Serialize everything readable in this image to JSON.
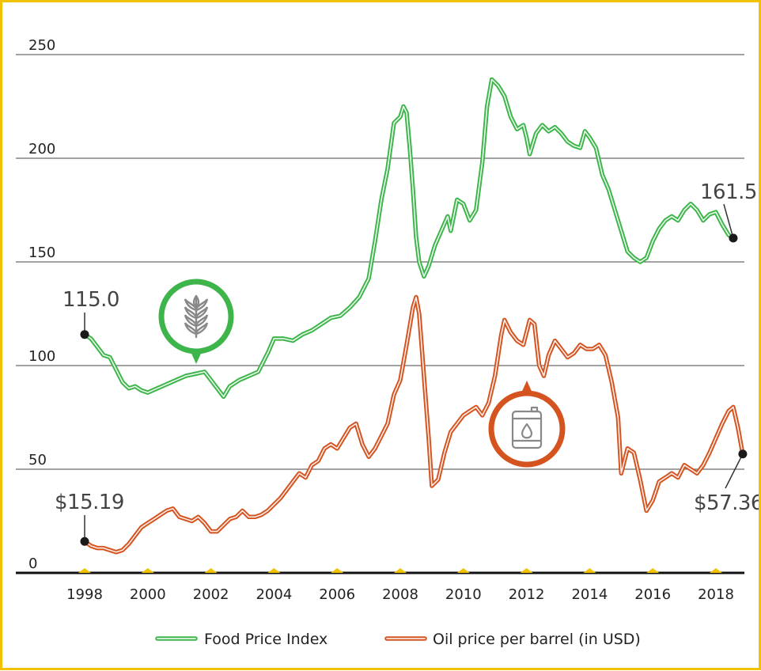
{
  "chart_data": {
    "type": "line",
    "title": "",
    "xlabel": "",
    "ylabel": "",
    "xlim": [
      1997.7,
      2018.9
    ],
    "ylim": [
      0,
      250
    ],
    "yticks": [
      0,
      50,
      100,
      150,
      200,
      250
    ],
    "xticks": [
      1998,
      2000,
      2002,
      2004,
      2006,
      2008,
      2010,
      2012,
      2014,
      2016,
      2018
    ],
    "grid": "horizontal",
    "legend_position": "bottom",
    "colors": {
      "food": "#3db54a",
      "oil": "#d4531f",
      "axis": "#111111",
      "marker": "#f2c200",
      "frame": "#f2c200"
    },
    "icons": [
      "wheat-icon",
      "oil-barrel-icon"
    ],
    "series": [
      {
        "key": "food",
        "name": "Food Price Index",
        "points": [
          [
            1998.0,
            115.0
          ],
          [
            1998.2,
            113
          ],
          [
            1998.4,
            109
          ],
          [
            1998.6,
            105
          ],
          [
            1998.8,
            104
          ],
          [
            1999.0,
            98
          ],
          [
            1999.2,
            92
          ],
          [
            1999.4,
            89
          ],
          [
            1999.6,
            90
          ],
          [
            1999.8,
            88
          ],
          [
            2000.0,
            87
          ],
          [
            2000.3,
            89
          ],
          [
            2000.6,
            91
          ],
          [
            2000.9,
            93
          ],
          [
            2001.2,
            95
          ],
          [
            2001.5,
            96
          ],
          [
            2001.8,
            97
          ],
          [
            2002.0,
            93
          ],
          [
            2002.2,
            89
          ],
          [
            2002.4,
            85
          ],
          [
            2002.6,
            90
          ],
          [
            2002.9,
            93
          ],
          [
            2003.2,
            95
          ],
          [
            2003.5,
            97
          ],
          [
            2003.8,
            106
          ],
          [
            2004.0,
            113
          ],
          [
            2004.3,
            113
          ],
          [
            2004.6,
            112
          ],
          [
            2004.9,
            115
          ],
          [
            2005.2,
            117
          ],
          [
            2005.5,
            120
          ],
          [
            2005.8,
            123
          ],
          [
            2006.1,
            124
          ],
          [
            2006.4,
            128
          ],
          [
            2006.7,
            133
          ],
          [
            2007.0,
            142
          ],
          [
            2007.2,
            160
          ],
          [
            2007.4,
            180
          ],
          [
            2007.6,
            195
          ],
          [
            2007.8,
            217
          ],
          [
            2008.0,
            220
          ],
          [
            2008.1,
            225
          ],
          [
            2008.2,
            222
          ],
          [
            2008.3,
            205
          ],
          [
            2008.4,
            185
          ],
          [
            2008.5,
            162
          ],
          [
            2008.6,
            150
          ],
          [
            2008.75,
            143
          ],
          [
            2008.9,
            148
          ],
          [
            2009.1,
            158
          ],
          [
            2009.3,
            165
          ],
          [
            2009.5,
            172
          ],
          [
            2009.6,
            165
          ],
          [
            2009.8,
            180
          ],
          [
            2010.0,
            178
          ],
          [
            2010.2,
            170
          ],
          [
            2010.4,
            175
          ],
          [
            2010.6,
            198
          ],
          [
            2010.75,
            225
          ],
          [
            2010.9,
            238
          ],
          [
            2011.1,
            235
          ],
          [
            2011.3,
            230
          ],
          [
            2011.5,
            220
          ],
          [
            2011.7,
            214
          ],
          [
            2011.9,
            216
          ],
          [
            2012.0,
            210
          ],
          [
            2012.1,
            202
          ],
          [
            2012.3,
            212
          ],
          [
            2012.5,
            216
          ],
          [
            2012.7,
            213
          ],
          [
            2012.9,
            215
          ],
          [
            2013.1,
            212
          ],
          [
            2013.3,
            208
          ],
          [
            2013.5,
            206
          ],
          [
            2013.7,
            205
          ],
          [
            2013.85,
            213
          ],
          [
            2014.0,
            210
          ],
          [
            2014.2,
            205
          ],
          [
            2014.4,
            192
          ],
          [
            2014.6,
            185
          ],
          [
            2014.8,
            175
          ],
          [
            2015.0,
            165
          ],
          [
            2015.2,
            155
          ],
          [
            2015.4,
            152
          ],
          [
            2015.6,
            150
          ],
          [
            2015.8,
            152
          ],
          [
            2016.0,
            160
          ],
          [
            2016.2,
            166
          ],
          [
            2016.4,
            170
          ],
          [
            2016.6,
            172
          ],
          [
            2016.8,
            170
          ],
          [
            2017.0,
            175
          ],
          [
            2017.2,
            178
          ],
          [
            2017.4,
            175
          ],
          [
            2017.6,
            170
          ],
          [
            2017.8,
            173
          ],
          [
            2018.0,
            174
          ],
          [
            2018.2,
            168
          ],
          [
            2018.4,
            163
          ],
          [
            2018.55,
            161.5
          ]
        ]
      },
      {
        "key": "oil",
        "name": "Oil price per barrel (in USD)",
        "points": [
          [
            1998.0,
            15.19
          ],
          [
            1998.2,
            13
          ],
          [
            1998.4,
            12
          ],
          [
            1998.6,
            12
          ],
          [
            1998.8,
            11
          ],
          [
            1999.0,
            10
          ],
          [
            1999.2,
            11
          ],
          [
            1999.4,
            14
          ],
          [
            1999.6,
            18
          ],
          [
            1999.8,
            22
          ],
          [
            2000.0,
            24
          ],
          [
            2000.2,
            26
          ],
          [
            2000.4,
            28
          ],
          [
            2000.6,
            30
          ],
          [
            2000.8,
            31
          ],
          [
            2001.0,
            27
          ],
          [
            2001.2,
            26
          ],
          [
            2001.4,
            25
          ],
          [
            2001.6,
            27
          ],
          [
            2001.8,
            24
          ],
          [
            2002.0,
            20
          ],
          [
            2002.2,
            20
          ],
          [
            2002.4,
            23
          ],
          [
            2002.6,
            26
          ],
          [
            2002.8,
            27
          ],
          [
            2003.0,
            30
          ],
          [
            2003.2,
            27
          ],
          [
            2003.4,
            27
          ],
          [
            2003.6,
            28
          ],
          [
            2003.8,
            30
          ],
          [
            2004.0,
            33
          ],
          [
            2004.2,
            36
          ],
          [
            2004.4,
            40
          ],
          [
            2004.6,
            44
          ],
          [
            2004.8,
            48
          ],
          [
            2005.0,
            46
          ],
          [
            2005.2,
            52
          ],
          [
            2005.4,
            54
          ],
          [
            2005.6,
            60
          ],
          [
            2005.8,
            62
          ],
          [
            2006.0,
            60
          ],
          [
            2006.2,
            65
          ],
          [
            2006.4,
            70
          ],
          [
            2006.6,
            72
          ],
          [
            2006.8,
            62
          ],
          [
            2007.0,
            56
          ],
          [
            2007.2,
            60
          ],
          [
            2007.4,
            66
          ],
          [
            2007.6,
            72
          ],
          [
            2007.8,
            86
          ],
          [
            2008.0,
            93
          ],
          [
            2008.2,
            110
          ],
          [
            2008.4,
            128
          ],
          [
            2008.5,
            133
          ],
          [
            2008.6,
            125
          ],
          [
            2008.75,
            95
          ],
          [
            2008.9,
            65
          ],
          [
            2009.0,
            42
          ],
          [
            2009.2,
            45
          ],
          [
            2009.4,
            58
          ],
          [
            2009.6,
            68
          ],
          [
            2009.8,
            72
          ],
          [
            2010.0,
            76
          ],
          [
            2010.2,
            78
          ],
          [
            2010.4,
            80
          ],
          [
            2010.6,
            76
          ],
          [
            2010.8,
            82
          ],
          [
            2011.0,
            95
          ],
          [
            2011.2,
            115
          ],
          [
            2011.3,
            122
          ],
          [
            2011.5,
            116
          ],
          [
            2011.7,
            112
          ],
          [
            2011.9,
            110
          ],
          [
            2012.1,
            122
          ],
          [
            2012.25,
            120
          ],
          [
            2012.4,
            100
          ],
          [
            2012.55,
            95
          ],
          [
            2012.7,
            105
          ],
          [
            2012.9,
            112
          ],
          [
            2013.1,
            108
          ],
          [
            2013.3,
            104
          ],
          [
            2013.5,
            106
          ],
          [
            2013.7,
            110
          ],
          [
            2013.9,
            108
          ],
          [
            2014.1,
            108
          ],
          [
            2014.3,
            110
          ],
          [
            2014.5,
            105
          ],
          [
            2014.7,
            92
          ],
          [
            2014.9,
            75
          ],
          [
            2015.0,
            48
          ],
          [
            2015.2,
            60
          ],
          [
            2015.4,
            58
          ],
          [
            2015.6,
            45
          ],
          [
            2015.8,
            30
          ],
          [
            2016.0,
            35
          ],
          [
            2016.2,
            44
          ],
          [
            2016.4,
            46
          ],
          [
            2016.6,
            48
          ],
          [
            2016.8,
            46
          ],
          [
            2017.0,
            52
          ],
          [
            2017.2,
            50
          ],
          [
            2017.4,
            48
          ],
          [
            2017.6,
            52
          ],
          [
            2017.8,
            58
          ],
          [
            2018.0,
            65
          ],
          [
            2018.2,
            72
          ],
          [
            2018.4,
            78
          ],
          [
            2018.55,
            80
          ],
          [
            2018.7,
            70
          ],
          [
            2018.85,
            57.36
          ]
        ]
      }
    ],
    "annotations": [
      {
        "series": "food",
        "text": "115.0",
        "x": 1998.0,
        "y": 115.0
      },
      {
        "series": "food",
        "text": "161.5",
        "x": 2018.55,
        "y": 161.5
      },
      {
        "series": "oil",
        "text": "$15.19",
        "x": 1998.0,
        "y": 15.19
      },
      {
        "series": "oil",
        "text": "$57.36",
        "x": 2018.85,
        "y": 57.36
      }
    ]
  }
}
